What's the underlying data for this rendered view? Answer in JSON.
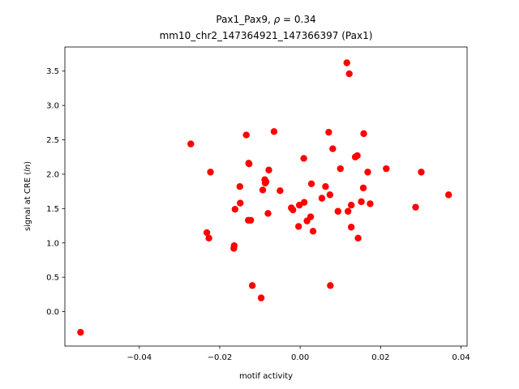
{
  "chart_data": {
    "type": "scatter",
    "title_line1_prefix": "Pax1_Pax9, ",
    "title_rho_symbol": "ρ",
    "title_line1_suffix": " = 0.34",
    "title_line2": "mm10_chr2_147364921_147366397 (Pax1)",
    "xlabel": "motif activity",
    "ylabel_prefix": "signal at CRE (",
    "ylabel_italic": "ln",
    "ylabel_suffix": ")",
    "xlim": [
      -0.0585,
      0.0415
    ],
    "ylim": [
      -0.5,
      3.85
    ],
    "xticks": [
      -0.04,
      -0.02,
      0.0,
      0.02,
      0.04
    ],
    "xtick_labels": [
      "−0.04",
      "−0.02",
      "0.00",
      "0.02",
      "0.04"
    ],
    "yticks": [
      0.0,
      0.5,
      1.0,
      1.5,
      2.0,
      2.5,
      3.0,
      3.5
    ],
    "ytick_labels": [
      "0.0",
      "0.5",
      "1.0",
      "1.5",
      "2.0",
      "2.5",
      "3.0",
      "3.5"
    ],
    "grid": false,
    "marker_color": "#ff0000",
    "points": [
      {
        "x": -0.0546,
        "y": -0.3
      },
      {
        "x": -0.0272,
        "y": 2.44
      },
      {
        "x": -0.0232,
        "y": 1.15
      },
      {
        "x": -0.0227,
        "y": 1.07
      },
      {
        "x": -0.0223,
        "y": 2.03
      },
      {
        "x": -0.0165,
        "y": 0.92
      },
      {
        "x": -0.0164,
        "y": 0.96
      },
      {
        "x": -0.0162,
        "y": 1.49
      },
      {
        "x": -0.015,
        "y": 1.82
      },
      {
        "x": -0.0149,
        "y": 1.58
      },
      {
        "x": -0.0134,
        "y": 2.57
      },
      {
        "x": -0.0129,
        "y": 1.33
      },
      {
        "x": -0.0128,
        "y": 2.16
      },
      {
        "x": -0.0127,
        "y": 2.15
      },
      {
        "x": -0.0123,
        "y": 1.33
      },
      {
        "x": -0.0119,
        "y": 0.38
      },
      {
        "x": -0.0097,
        "y": 0.2
      },
      {
        "x": -0.0093,
        "y": 1.77
      },
      {
        "x": -0.0088,
        "y": 1.92
      },
      {
        "x": -0.0087,
        "y": 1.87
      },
      {
        "x": -0.0085,
        "y": 1.89
      },
      {
        "x": -0.008,
        "y": 1.43
      },
      {
        "x": -0.0078,
        "y": 2.06
      },
      {
        "x": -0.0065,
        "y": 2.62
      },
      {
        "x": -0.005,
        "y": 1.76
      },
      {
        "x": -0.0022,
        "y": 1.51
      },
      {
        "x": -0.0018,
        "y": 1.48
      },
      {
        "x": -0.0004,
        "y": 1.24
      },
      {
        "x": -0.0002,
        "y": 1.55
      },
      {
        "x": 0.0009,
        "y": 2.23
      },
      {
        "x": 0.001,
        "y": 1.59
      },
      {
        "x": 0.0017,
        "y": 1.32
      },
      {
        "x": 0.0026,
        "y": 1.38
      },
      {
        "x": 0.0028,
        "y": 1.86
      },
      {
        "x": 0.0032,
        "y": 1.17
      },
      {
        "x": 0.0054,
        "y": 1.65
      },
      {
        "x": 0.0063,
        "y": 1.82
      },
      {
        "x": 0.0071,
        "y": 2.61
      },
      {
        "x": 0.0074,
        "y": 1.7
      },
      {
        "x": 0.0075,
        "y": 0.38
      },
      {
        "x": 0.0081,
        "y": 2.37
      },
      {
        "x": 0.0094,
        "y": 1.46
      },
      {
        "x": 0.01,
        "y": 2.08
      },
      {
        "x": 0.0116,
        "y": 3.62
      },
      {
        "x": 0.0119,
        "y": 1.46
      },
      {
        "x": 0.0122,
        "y": 3.46
      },
      {
        "x": 0.0127,
        "y": 1.55
      },
      {
        "x": 0.0127,
        "y": 1.23
      },
      {
        "x": 0.0137,
        "y": 2.25
      },
      {
        "x": 0.0142,
        "y": 2.27
      },
      {
        "x": 0.0144,
        "y": 1.07
      },
      {
        "x": 0.0152,
        "y": 1.6
      },
      {
        "x": 0.0157,
        "y": 1.8
      },
      {
        "x": 0.0158,
        "y": 2.59
      },
      {
        "x": 0.0168,
        "y": 2.03
      },
      {
        "x": 0.0174,
        "y": 1.57
      },
      {
        "x": 0.0214,
        "y": 2.08
      },
      {
        "x": 0.0287,
        "y": 1.52
      },
      {
        "x": 0.0301,
        "y": 2.03
      },
      {
        "x": 0.0369,
        "y": 1.7
      }
    ]
  }
}
